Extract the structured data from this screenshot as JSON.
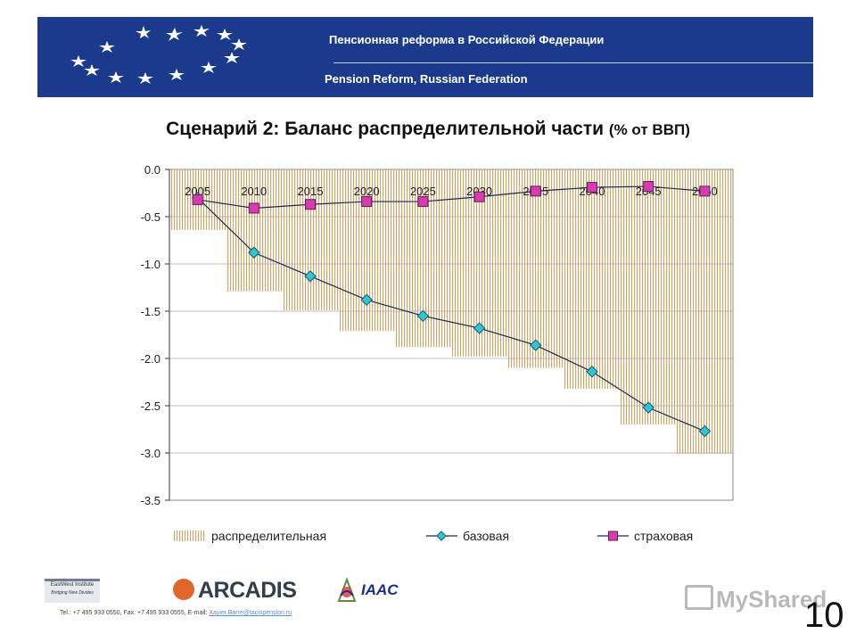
{
  "header": {
    "title_ru": "Пенсионная реформа в Российской Федерации",
    "title_en": "Pension Reform, Russian Federation"
  },
  "slide": {
    "title": "Сценарий 2: Баланс распределительной части",
    "title_unit": "(% от ВВП)",
    "page_number": "10"
  },
  "chart_data": {
    "type": "bar",
    "categories": [
      "2005",
      "2010",
      "2015",
      "2020",
      "2025",
      "2030",
      "2035",
      "2040",
      "2045",
      "2050"
    ],
    "ylim": [
      -3.5,
      0.0
    ],
    "yticks": [
      0.0,
      -0.5,
      -1.0,
      -1.5,
      -2.0,
      -2.5,
      -3.0,
      -3.5
    ],
    "ytick_labels": [
      "0.0",
      "-0.5",
      "-1.0",
      "-1.5",
      "-2.0",
      "-2.5",
      "-3.0",
      "-3.5"
    ],
    "grid": "horizontal",
    "legend_position": "bottom",
    "series": [
      {
        "name": "распределительная",
        "type": "bar",
        "color": "#c8a86b",
        "values": [
          -0.64,
          -1.29,
          -1.49,
          -1.71,
          -1.88,
          -1.98,
          -2.1,
          -2.32,
          -2.7,
          -3.01
        ]
      },
      {
        "name": "базовая",
        "type": "line",
        "color": "#2cc6d6",
        "marker": "diamond",
        "values": [
          -0.3,
          -0.88,
          -1.13,
          -1.38,
          -1.55,
          -1.68,
          -1.86,
          -2.14,
          -2.52,
          -2.77
        ]
      },
      {
        "name": "страховая",
        "type": "line",
        "color": "#d63bb0",
        "marker": "square",
        "values": [
          -0.32,
          -0.41,
          -0.37,
          -0.34,
          -0.34,
          -0.29,
          -0.23,
          -0.19,
          -0.18,
          -0.23
        ]
      }
    ]
  },
  "footer": {
    "ewi_name": "EastWest Institute",
    "ewi_tagline": "Bridging New Divides",
    "arcadis": "ARCADIS",
    "iaac": "IAAC",
    "contact_text": "Tel.: +7 495 933 0550, Fax: +7 495 933 0555, E-mail: ",
    "email": "Xavier.Barre@tacispension.ru",
    "watermark": "MyShared"
  },
  "colors": {
    "banner": "#1b3a8c",
    "bar_stripe": "#c8a86b",
    "line_base": "#1a2a4a"
  }
}
